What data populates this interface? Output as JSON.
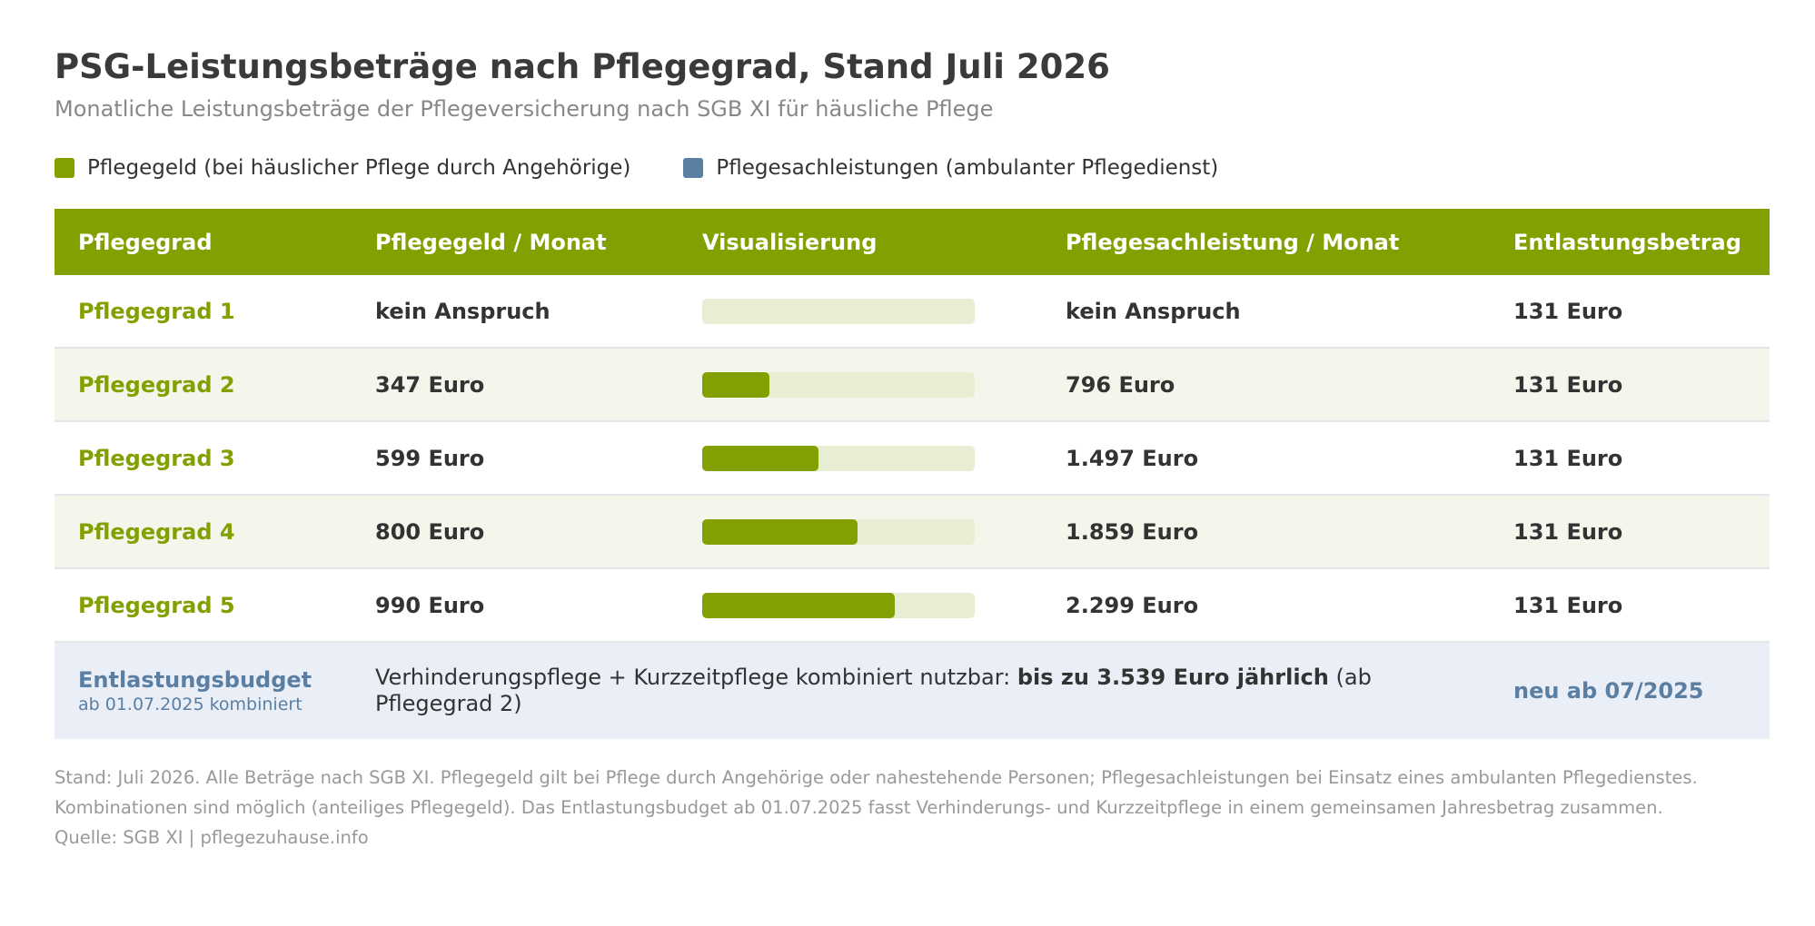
{
  "title": "PSG-Leistungsbeträge nach Pflegegrad, Stand Juli 2026",
  "subtitle": "Monatliche Leistungsbeträge der Pflegeversicherung nach SGB XI für häusliche Pflege",
  "colors": {
    "green": "#82a000",
    "blue": "#5b7fa3",
    "track": "#e8eed3"
  },
  "legend": [
    {
      "label": "Pflegegeld (bei häuslicher Pflege durch Angehörige)",
      "color": "#82a000"
    },
    {
      "label": "Pflegesachleistungen (ambulanter Pflegedienst)",
      "color": "#5b7fa3"
    }
  ],
  "headers": {
    "grade": "Pflegegrad",
    "pflegegeld": "Pflegegeld / Monat",
    "visual": "Visualisierung",
    "sachleistung": "Pflegesachleistung / Monat",
    "entlastung": "Entlastungsbetrag"
  },
  "chart_data": {
    "type": "table",
    "bar_max": 1400,
    "rows": [
      {
        "grade": "Pflegegrad 1",
        "pflegegeld": "kein Anspruch",
        "pflegegeld_value": 0,
        "sachleistung": "kein Anspruch",
        "entlastung": "131 Euro"
      },
      {
        "grade": "Pflegegrad 2",
        "pflegegeld": "347 Euro",
        "pflegegeld_value": 347,
        "sachleistung": "796 Euro",
        "entlastung": "131 Euro"
      },
      {
        "grade": "Pflegegrad 3",
        "pflegegeld": "599 Euro",
        "pflegegeld_value": 599,
        "sachleistung": "1.497 Euro",
        "entlastung": "131 Euro"
      },
      {
        "grade": "Pflegegrad 4",
        "pflegegeld": "800 Euro",
        "pflegegeld_value": 800,
        "sachleistung": "1.859 Euro",
        "entlastung": "131 Euro"
      },
      {
        "grade": "Pflegegrad 5",
        "pflegegeld": "990 Euro",
        "pflegegeld_value": 990,
        "sachleistung": "2.299 Euro",
        "entlastung": "131 Euro"
      }
    ]
  },
  "budget": {
    "title": "Entlastungsbudget",
    "sub": "ab 01.07.2025 kombiniert",
    "text_before": "Verhinderungspflege + Kurzzeitpflege kombiniert nutzbar: ",
    "text_bold": "bis zu 3.539 Euro jährlich",
    "text_after": " (ab Pflegegrad 2)",
    "new_label": "neu ab 07/2025"
  },
  "footnote": "Stand: Juli 2026. Alle Beträge nach SGB XI. Pflegegeld gilt bei Pflege durch Angehörige oder nahestehende Personen; Pflegesachleistungen bei Einsatz eines ambulanten Pflegedienstes. Kombinationen sind möglich (anteiliges Pflegegeld). Das Entlastungsbudget ab 01.07.2025 fasst Verhinderungs- und Kurzzeitpflege in einem gemeinsamen Jahresbetrag zusammen.",
  "source": "Quelle: SGB XI | pflegezuhause.info"
}
